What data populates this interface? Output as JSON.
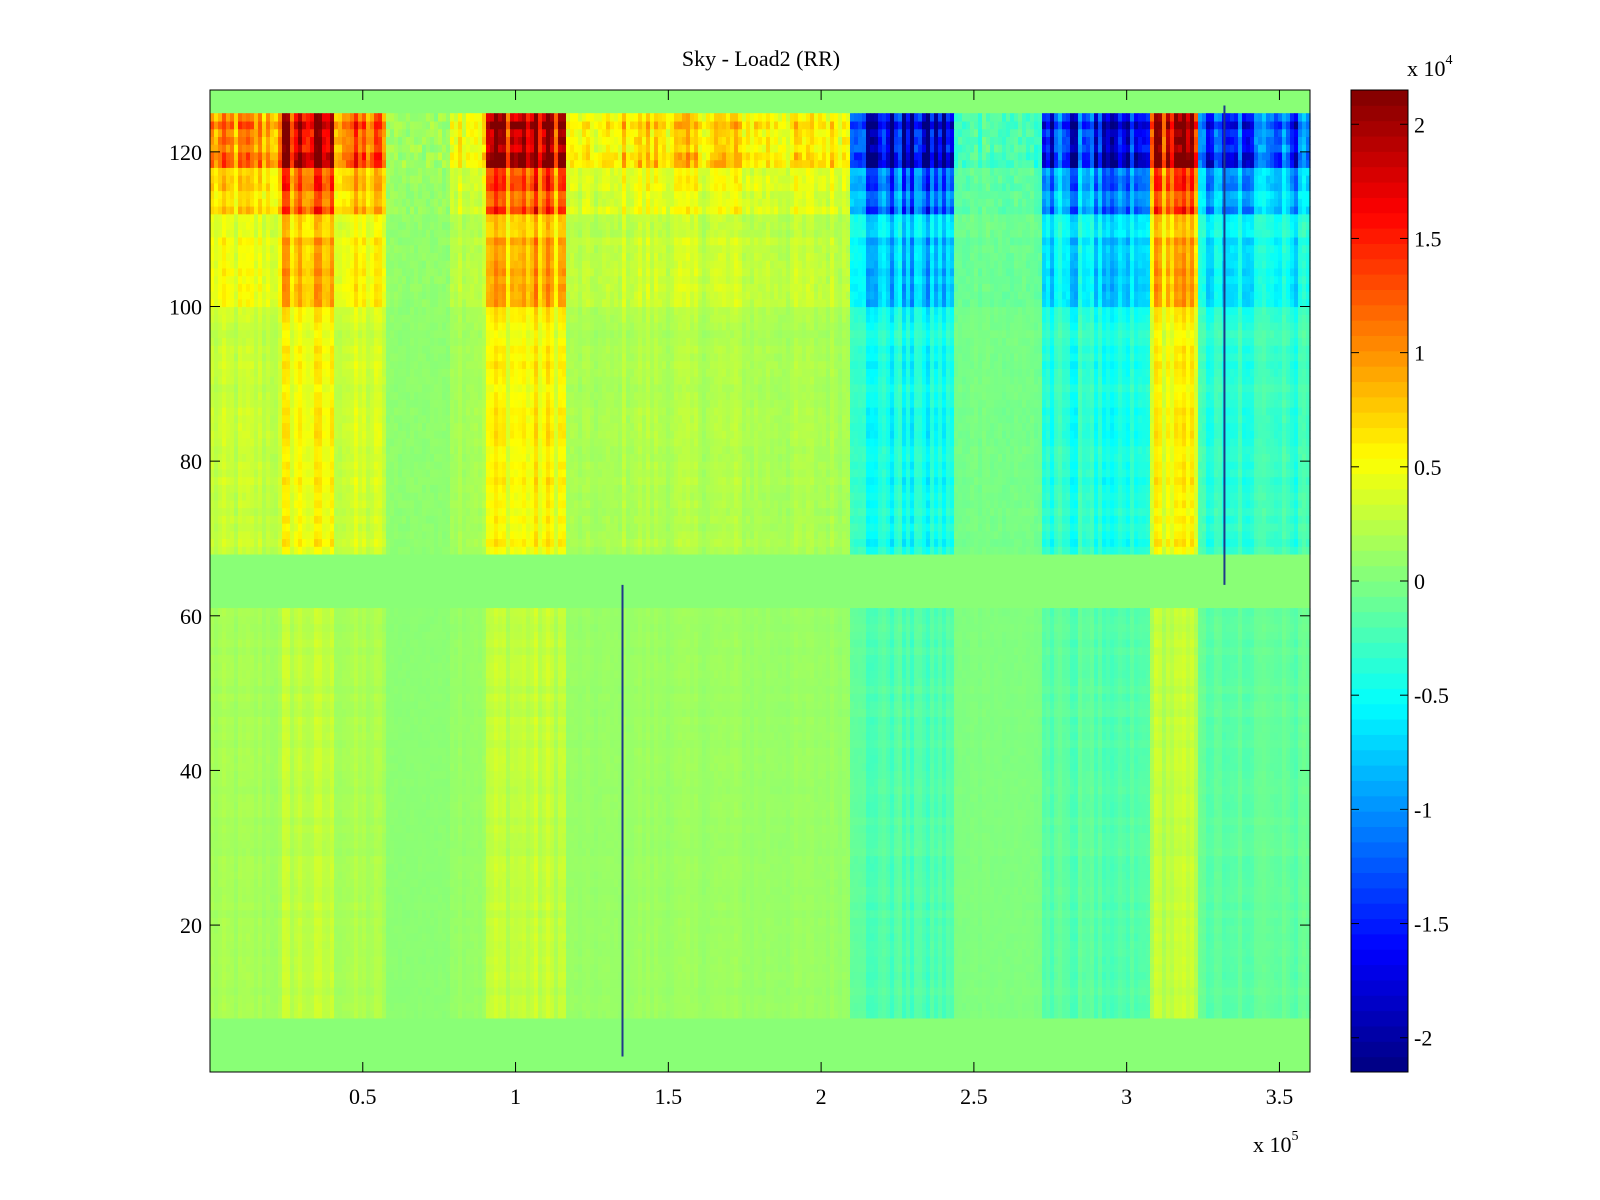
{
  "chart_data": {
    "type": "heatmap",
    "title": "Sky - Load2 (RR)",
    "xlabel": "",
    "ylabel": "",
    "x_range": [
      0,
      360000
    ],
    "y_range": [
      1,
      128
    ],
    "x_ticks": [
      {
        "value": 50000,
        "label": "0.5"
      },
      {
        "value": 100000,
        "label": "1"
      },
      {
        "value": 150000,
        "label": "1.5"
      },
      {
        "value": 200000,
        "label": "2"
      },
      {
        "value": 250000,
        "label": "2.5"
      },
      {
        "value": 300000,
        "label": "3"
      },
      {
        "value": 350000,
        "label": "3.5"
      }
    ],
    "x_multiplier": {
      "base": "x 10",
      "exponent": "5"
    },
    "y_ticks": [
      {
        "value": 20,
        "label": "20"
      },
      {
        "value": 40,
        "label": "40"
      },
      {
        "value": 60,
        "label": "60"
      },
      {
        "value": 80,
        "label": "80"
      },
      {
        "value": 100,
        "label": "100"
      },
      {
        "value": 120,
        "label": "120"
      }
    ],
    "colormap": "jet",
    "colorbar": {
      "range": [
        -21500,
        21500
      ],
      "ticks": [
        {
          "value": -20000,
          "label": "-2"
        },
        {
          "value": -15000,
          "label": "-1.5"
        },
        {
          "value": -10000,
          "label": "-1"
        },
        {
          "value": -5000,
          "label": "-0.5"
        },
        {
          "value": 0,
          "label": "0"
        },
        {
          "value": 5000,
          "label": "0.5"
        },
        {
          "value": 10000,
          "label": "1"
        },
        {
          "value": 15000,
          "label": "1.5"
        },
        {
          "value": 20000,
          "label": "2"
        }
      ],
      "multiplier": {
        "base": "x 10",
        "exponent": "4"
      }
    },
    "time_segments": [
      {
        "x0": 0,
        "x1": 24000,
        "level": 0.5
      },
      {
        "x0": 24000,
        "x1": 40000,
        "level": 0.95
      },
      {
        "x0": 40000,
        "x1": 58000,
        "level": 0.6
      },
      {
        "x0": 58000,
        "x1": 78000,
        "level": 0.05
      },
      {
        "x0": 78000,
        "x1": 90000,
        "level": 0.3
      },
      {
        "x0": 90000,
        "x1": 116000,
        "level": 1.0
      },
      {
        "x0": 116000,
        "x1": 133000,
        "level": 0.25
      },
      {
        "x0": 133000,
        "x1": 175000,
        "level": 0.35
      },
      {
        "x0": 175000,
        "x1": 210000,
        "level": 0.3
      },
      {
        "x0": 210000,
        "x1": 243000,
        "level": -1.0
      },
      {
        "x0": 243000,
        "x1": 272000,
        "level": -0.15
      },
      {
        "x0": 272000,
        "x1": 308000,
        "level": -0.85
      },
      {
        "x0": 308000,
        "x1": 323000,
        "level": 0.95
      },
      {
        "x0": 323000,
        "x1": 360000,
        "level": -0.75
      }
    ],
    "row_profile": [
      {
        "y0": 1,
        "y1": 8,
        "amp": 0.0
      },
      {
        "y0": 8,
        "y1": 61,
        "amp": 0.12
      },
      {
        "y0": 61,
        "y1": 68,
        "amp": 0.0
      },
      {
        "y0": 68,
        "y1": 100,
        "amp": 0.25
      },
      {
        "y0": 100,
        "y1": 112,
        "amp": 0.4
      },
      {
        "y0": 112,
        "y1": 118,
        "amp": 0.6
      },
      {
        "y0": 118,
        "y1": 125,
        "amp": 1.0
      },
      {
        "y0": 125,
        "y1": 128,
        "amp": 0.0
      }
    ],
    "spike_lines": [
      {
        "x": 135000,
        "y0": 3,
        "y1": 64
      },
      {
        "x": 332000,
        "y0": 64,
        "y1": 126
      }
    ],
    "background_value": 400
  }
}
